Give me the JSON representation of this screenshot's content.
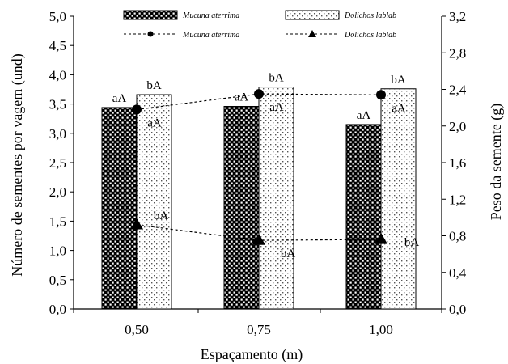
{
  "chart_data": {
    "type": "bar",
    "categories": [
      "0,50",
      "0,75",
      "1,00"
    ],
    "xlabel": "Espaçamento (m)",
    "ylabel_left": "Número de sementes  por vagem (und)",
    "ylabel_right": "Peso da semente (g)",
    "ylim_left": [
      0,
      5
    ],
    "ylim_right": [
      0,
      3.2
    ],
    "yticks_left": [
      "0,0",
      "0,5",
      "1,0",
      "1,5",
      "2,0",
      "2,5",
      "3,0",
      "3,5",
      "4,0",
      "4,5",
      "5,0"
    ],
    "yticks_right": [
      "0,0",
      "0,4",
      "0,8",
      "1,2",
      "1,6",
      "2,0",
      "2,4",
      "2,8",
      "3,2"
    ],
    "grid": false,
    "legend_position": "top",
    "bar_series": [
      {
        "name": "Mucuna aterrima",
        "axis": "left",
        "pattern": "dense-squares",
        "values": [
          3.44,
          3.46,
          3.15
        ],
        "labels": [
          "aA",
          "aA",
          "aA"
        ]
      },
      {
        "name": "Dolichos lablab",
        "axis": "left",
        "pattern": "sparse-dots",
        "values": [
          3.66,
          3.79,
          3.76
        ],
        "labels": [
          "bA",
          "bA",
          "bA"
        ]
      }
    ],
    "line_series": [
      {
        "name": "Mucuna aterrima",
        "axis": "right",
        "marker": "circle",
        "values": [
          2.18,
          2.35,
          2.34
        ],
        "labels": [
          "aA",
          "aA",
          "aA"
        ]
      },
      {
        "name": "Dolichos lablab",
        "axis": "right",
        "marker": "triangle",
        "values": [
          0.92,
          0.75,
          0.76
        ],
        "labels": [
          "bA",
          "bA",
          "bA"
        ]
      }
    ]
  }
}
